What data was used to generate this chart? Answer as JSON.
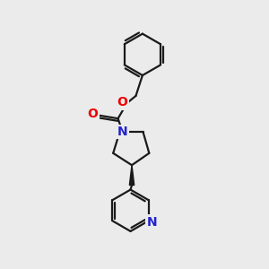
{
  "background_color": "#ebebeb",
  "bond_color": "#1a1a1a",
  "bond_width": 1.6,
  "atom_colors": {
    "O": "#ee0000",
    "N_pyrrolidine": "#2222cc",
    "N_pyridine": "#2222cc"
  },
  "font_size_atoms": 10,
  "fig_size": [
    3.0,
    3.0
  ],
  "dpi": 100,
  "xlim": [
    0,
    10
  ],
  "ylim": [
    0,
    10
  ]
}
